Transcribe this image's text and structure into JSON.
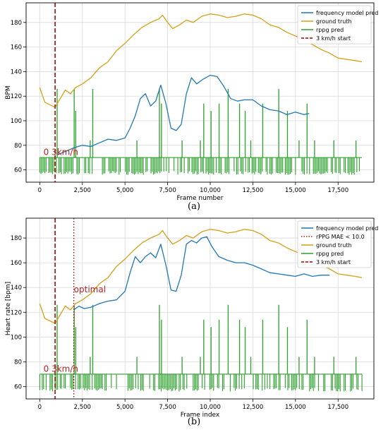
{
  "chart_data": [
    {
      "type": "line",
      "caption": "(a)",
      "xlabel": "Frame number",
      "ylabel": "BPM",
      "xlim": [
        -800,
        19600
      ],
      "ylim": [
        50,
        196
      ],
      "xticks": [
        0,
        2500,
        5000,
        7500,
        10000,
        12500,
        15000,
        17500
      ],
      "xtick_labels": [
        "0",
        "2,500",
        "5,000",
        "7,500",
        "10,000",
        "12,500",
        "15,000",
        "17,500"
      ],
      "yticks": [
        60,
        80,
        100,
        120,
        140,
        160,
        180
      ],
      "grid": true,
      "legend_position": "top-right",
      "legend": [
        "frequency model pred",
        "ground truth",
        "rppg pred",
        "3 km/h start"
      ],
      "annotations": [
        {
          "text": "0 3km/h",
          "x": 220,
          "y": 72
        }
      ],
      "vlines": [
        {
          "name": "3 km/h start",
          "x": 900,
          "style": "dashed",
          "color": "#b22222"
        }
      ],
      "series": [
        {
          "name": "frequency model pred",
          "color": "#1f77b4",
          "x": [
            1000,
            1500,
            2000,
            2500,
            3000,
            3500,
            4000,
            4500,
            5000,
            5300,
            5600,
            5900,
            6200,
            6500,
            6800,
            7100,
            7400,
            7700,
            8000,
            8300,
            8600,
            8900,
            9200,
            9600,
            10000,
            10400,
            10800,
            11200,
            11600,
            12000,
            12500,
            13000,
            13500,
            14000,
            14500,
            15000,
            15500,
            15800
          ],
          "y": [
            72,
            75,
            78,
            80,
            79,
            82,
            85,
            84,
            86,
            94,
            104,
            118,
            122,
            112,
            116,
            129,
            114,
            94,
            92,
            97,
            122,
            135,
            130,
            134,
            137,
            136,
            128,
            118,
            116,
            117,
            117,
            112,
            109,
            108,
            105,
            107,
            105,
            106
          ]
        },
        {
          "name": "ground truth",
          "color": "#d4a017",
          "x": [
            0,
            300,
            600,
            900,
            1200,
            1500,
            1800,
            2100,
            2500,
            3000,
            3500,
            4000,
            4500,
            5000,
            5500,
            6000,
            6500,
            7000,
            7200,
            7500,
            7800,
            8200,
            8600,
            9000,
            9500,
            10000,
            10500,
            11000,
            11500,
            12000,
            12500,
            13000,
            13500,
            14000,
            14500,
            15000,
            15500,
            16000,
            16500,
            17000,
            17500,
            18000,
            18500,
            18900
          ],
          "y": [
            127,
            115,
            113,
            111,
            118,
            125,
            122,
            127,
            130,
            135,
            143,
            148,
            157,
            163,
            170,
            176,
            180,
            183,
            186,
            180,
            175,
            178,
            182,
            180,
            185,
            187,
            186,
            184,
            185,
            187,
            186,
            183,
            178,
            176,
            172,
            169,
            166,
            162,
            158,
            155,
            151,
            150,
            149,
            148
          ]
        }
      ],
      "rppg": {
        "name": "rppg pred",
        "color": "#2ca02c",
        "baseline": 70,
        "x_range": [
          0,
          18900
        ],
        "spikes": [
          {
            "x": 1020,
            "y": 126
          },
          {
            "x": 2020,
            "y": 126
          },
          {
            "x": 2110,
            "y": 108
          },
          {
            "x": 3110,
            "y": 126
          },
          {
            "x": 2960,
            "y": 84
          },
          {
            "x": 5700,
            "y": 84
          },
          {
            "x": 7020,
            "y": 126
          },
          {
            "x": 7140,
            "y": 114
          },
          {
            "x": 8350,
            "y": 84
          },
          {
            "x": 9420,
            "y": 84
          },
          {
            "x": 9620,
            "y": 114
          },
          {
            "x": 10050,
            "y": 108
          },
          {
            "x": 10520,
            "y": 114
          },
          {
            "x": 11050,
            "y": 126
          },
          {
            "x": 11720,
            "y": 114
          },
          {
            "x": 12050,
            "y": 108
          },
          {
            "x": 12380,
            "y": 84
          },
          {
            "x": 13080,
            "y": 114
          },
          {
            "x": 14020,
            "y": 126
          },
          {
            "x": 14530,
            "y": 108
          },
          {
            "x": 15210,
            "y": 84
          },
          {
            "x": 15680,
            "y": 114
          },
          {
            "x": 16120,
            "y": 84
          },
          {
            "x": 17250,
            "y": 84
          },
          {
            "x": 18550,
            "y": 84
          }
        ]
      }
    },
    {
      "type": "line",
      "caption": "(b)",
      "xlabel": "Frame index",
      "ylabel": "Heart rate [bpm]",
      "xlim": [
        -800,
        19600
      ],
      "ylim": [
        50,
        196
      ],
      "xticks": [
        0,
        2500,
        5000,
        7500,
        10000,
        12500,
        15000,
        17500
      ],
      "xtick_labels": [
        "0",
        "2,500",
        "5,000",
        "7,500",
        "10,000",
        "12,500",
        "15,000",
        "17,500"
      ],
      "yticks": [
        60,
        80,
        100,
        120,
        140,
        160,
        180
      ],
      "grid": true,
      "legend_position": "top-right",
      "legend": [
        "frequency model pred",
        "rPPG MAE < 10.0",
        "ground truth",
        "rppg pred",
        "3 km/h start"
      ],
      "annotations": [
        {
          "text": "optimal",
          "x": 2000,
          "y": 136
        },
        {
          "text": "0 3km/h",
          "x": 220,
          "y": 72
        }
      ],
      "vlines": [
        {
          "name": "3 km/h start",
          "x": 900,
          "style": "dashed",
          "color": "#b22222"
        },
        {
          "name": "rPPG MAE < 10.0",
          "x": 2000,
          "style": "dotted",
          "color": "#8b0000"
        }
      ],
      "series": [
        {
          "name": "frequency model pred",
          "color": "#1f77b4",
          "x": [
            2000,
            2300,
            2600,
            3000,
            3500,
            4000,
            4500,
            5000,
            5300,
            5600,
            5900,
            6200,
            6500,
            6800,
            7100,
            7400,
            7700,
            8000,
            8300,
            8600,
            8900,
            9200,
            9500,
            9800,
            10100,
            10500,
            11000,
            11500,
            12000,
            12500,
            13000,
            13500,
            14000,
            14500,
            15000,
            15500,
            16000,
            16500,
            17000
          ],
          "y": [
            122,
            125,
            123,
            124,
            127,
            129,
            130,
            137,
            152,
            165,
            160,
            165,
            168,
            164,
            175,
            158,
            138,
            137,
            150,
            175,
            178,
            176,
            180,
            181,
            173,
            165,
            162,
            160,
            160,
            158,
            155,
            152,
            151,
            150,
            149,
            151,
            149,
            150,
            150
          ]
        },
        {
          "name": "ground truth",
          "color": "#d4a017",
          "x": [
            0,
            300,
            600,
            900,
            1200,
            1500,
            1800,
            2100,
            2500,
            3000,
            3500,
            4000,
            4500,
            5000,
            5500,
            6000,
            6500,
            7000,
            7200,
            7500,
            7800,
            8200,
            8600,
            9000,
            9500,
            10000,
            10500,
            11000,
            11500,
            12000,
            12500,
            13000,
            13500,
            14000,
            14500,
            15000,
            15500,
            16000,
            16500,
            17000,
            17500,
            18000,
            18500,
            18900
          ],
          "y": [
            127,
            115,
            113,
            111,
            118,
            125,
            122,
            127,
            130,
            135,
            143,
            148,
            157,
            163,
            170,
            176,
            180,
            183,
            186,
            180,
            175,
            178,
            182,
            180,
            185,
            187,
            186,
            184,
            185,
            187,
            186,
            183,
            178,
            176,
            172,
            169,
            166,
            162,
            158,
            155,
            151,
            150,
            149,
            148
          ]
        }
      ],
      "rppg": {
        "name": "rppg pred",
        "color": "#2ca02c",
        "baseline": 70,
        "x_range": [
          0,
          18900
        ],
        "spikes": [
          {
            "x": 1020,
            "y": 126
          },
          {
            "x": 2020,
            "y": 126
          },
          {
            "x": 2110,
            "y": 108
          },
          {
            "x": 3110,
            "y": 126
          },
          {
            "x": 2960,
            "y": 84
          },
          {
            "x": 5700,
            "y": 84
          },
          {
            "x": 7020,
            "y": 126
          },
          {
            "x": 7140,
            "y": 114
          },
          {
            "x": 8350,
            "y": 84
          },
          {
            "x": 9420,
            "y": 84
          },
          {
            "x": 9620,
            "y": 114
          },
          {
            "x": 10050,
            "y": 108
          },
          {
            "x": 10520,
            "y": 114
          },
          {
            "x": 11050,
            "y": 126
          },
          {
            "x": 11720,
            "y": 114
          },
          {
            "x": 12050,
            "y": 108
          },
          {
            "x": 12380,
            "y": 84
          },
          {
            "x": 13080,
            "y": 114
          },
          {
            "x": 14020,
            "y": 126
          },
          {
            "x": 14530,
            "y": 108
          },
          {
            "x": 15210,
            "y": 84
          },
          {
            "x": 15680,
            "y": 114
          },
          {
            "x": 16120,
            "y": 84
          },
          {
            "x": 17250,
            "y": 84
          },
          {
            "x": 18550,
            "y": 84
          }
        ]
      }
    }
  ]
}
